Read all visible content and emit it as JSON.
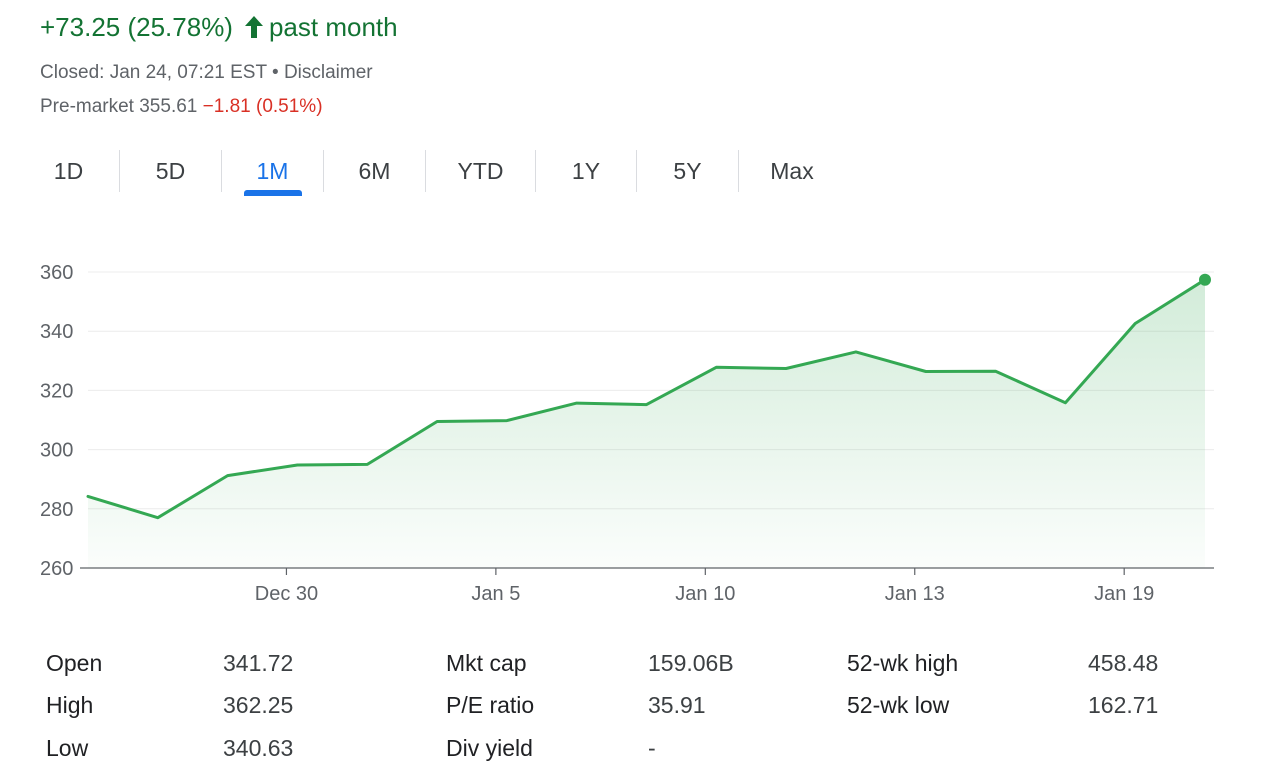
{
  "summary": {
    "change_text": "+73.25 (25.78%)",
    "period_label": "past month",
    "change_direction_icon": "arrow-up-icon",
    "closed_text": "Closed: Jan 24, 07:21 EST • ",
    "disclaimer_label": "Disclaimer",
    "premarket_label": "Pre-market 355.61 ",
    "premarket_change": "−1.81 (0.51%)"
  },
  "colors": {
    "positive": "#137333",
    "negative": "#d93025",
    "line": "#34a853",
    "accent": "#1a73e8"
  },
  "tabs": [
    {
      "label": "1D",
      "active": false
    },
    {
      "label": "5D",
      "active": false
    },
    {
      "label": "1M",
      "active": true
    },
    {
      "label": "6M",
      "active": false
    },
    {
      "label": "YTD",
      "active": false
    },
    {
      "label": "1Y",
      "active": false
    },
    {
      "label": "5Y",
      "active": false
    },
    {
      "label": "Max",
      "active": false
    }
  ],
  "chart_data": {
    "type": "area",
    "title": "",
    "xlabel": "",
    "ylabel": "",
    "ylim": [
      260,
      360
    ],
    "y_ticks": [
      260,
      280,
      300,
      320,
      340,
      360
    ],
    "x_ticks": [
      "Dec 30",
      "Jan 5",
      "Jan 10",
      "Jan 13",
      "Jan 19"
    ],
    "grid": true,
    "series": [
      {
        "values": [
          284.2,
          277.0,
          291.2,
          294.8,
          295.0,
          309.5,
          309.8,
          315.7,
          315.2,
          327.8,
          327.4,
          333.0,
          326.4,
          326.5,
          315.8,
          342.6,
          357.4
        ]
      }
    ]
  },
  "stats": [
    {
      "label": "Open",
      "value": "341.72"
    },
    {
      "label": "High",
      "value": "362.25"
    },
    {
      "label": "Low",
      "value": "340.63"
    },
    {
      "label": "Mkt cap",
      "value": "159.06B"
    },
    {
      "label": "P/E ratio",
      "value": "35.91"
    },
    {
      "label": "Div yield",
      "value": "-"
    },
    {
      "label": "52-wk high",
      "value": "458.48"
    },
    {
      "label": "52-wk low",
      "value": "162.71"
    }
  ]
}
